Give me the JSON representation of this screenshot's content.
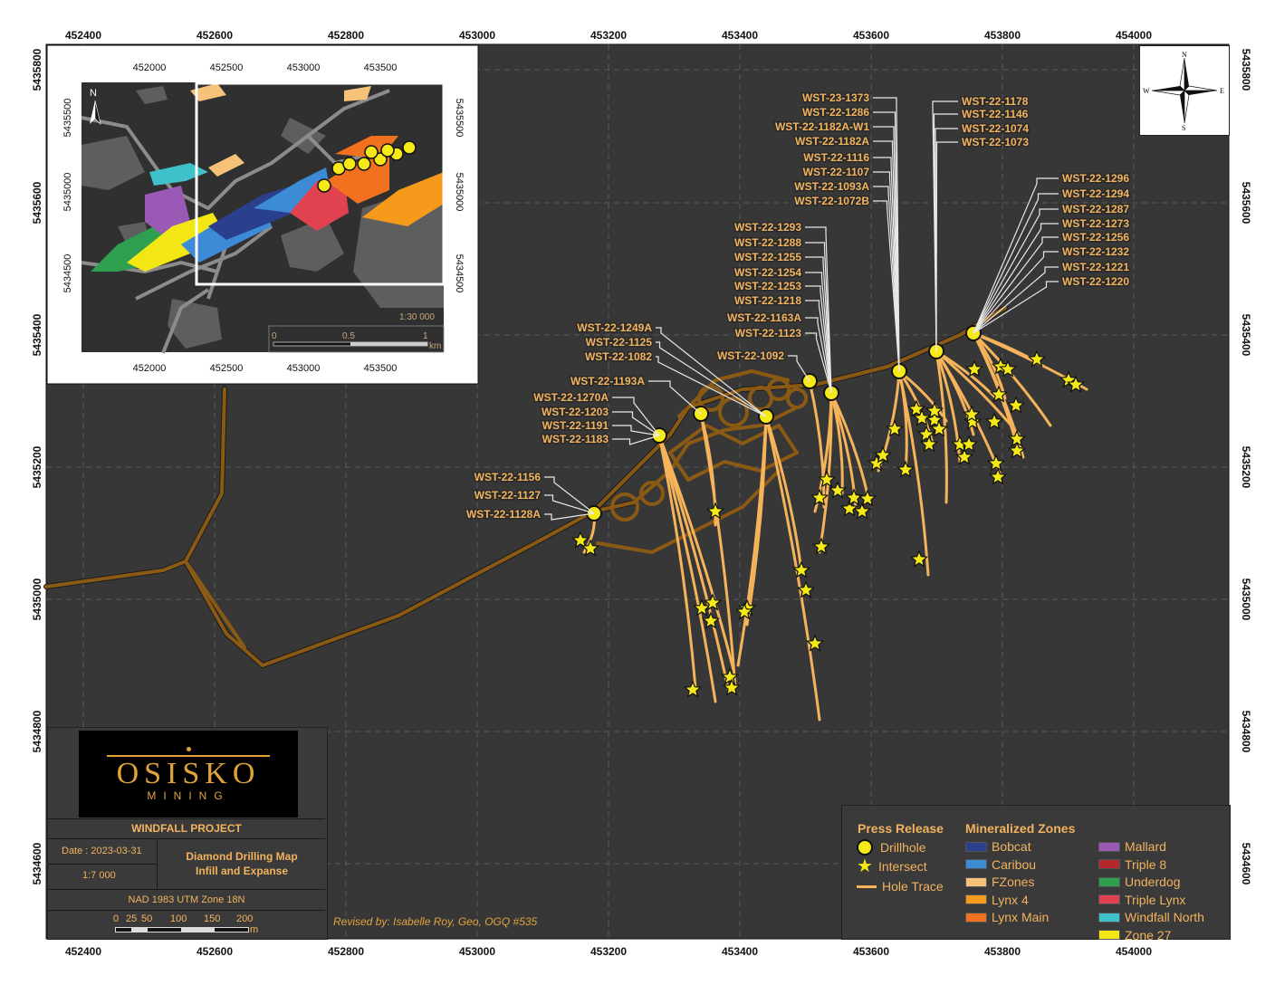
{
  "map": {
    "top_axis": [
      "452400",
      "452600",
      "452800",
      "453000",
      "453200",
      "453400",
      "453600",
      "453800",
      "454000"
    ],
    "bottom_axis": [
      "452400",
      "452600",
      "452800",
      "453000",
      "453200",
      "453400",
      "453600",
      "453800",
      "454000"
    ],
    "left_axis": [
      "5435800",
      "5435600",
      "5435400",
      "5435200",
      "5435000",
      "5434800",
      "5434600"
    ],
    "right_axis": [
      "5435800",
      "5435600",
      "5435400",
      "5435200",
      "5435000",
      "5434800",
      "5434600"
    ]
  },
  "inset": {
    "top_axis": [
      "452000",
      "452500",
      "453000",
      "453500"
    ],
    "bottom_axis": [
      "452000",
      "452500",
      "453000",
      "453500"
    ],
    "left_axis": [
      "5435500",
      "5435000",
      "5434500"
    ],
    "right_axis": [
      "5435500",
      "5435000",
      "5434500"
    ],
    "north": "N",
    "scale_text": "1:30 000",
    "scale_ticks": [
      "0",
      "0.5",
      "1"
    ],
    "scale_unit": "km"
  },
  "compass": {
    "n": "N",
    "s": "S",
    "e": "E",
    "w": "W"
  },
  "labels": {
    "g1": [
      "WST-23-1373",
      "WST-22-1286",
      "WST-22-1182A-W1",
      "WST-22-1182A",
      "WST-22-1116",
      "WST-22-1107",
      "WST-22-1093A",
      "WST-22-1072B"
    ],
    "g2": [
      "WST-22-1178",
      "WST-22-1146",
      "WST-22-1074",
      "WST-22-1073"
    ],
    "g3": [
      "WST-22-1296",
      "WST-22-1294",
      "WST-22-1287",
      "WST-22-1273",
      "WST-22-1256",
      "WST-22-1232",
      "WST-22-1221",
      "WST-22-1220"
    ],
    "g4": [
      "WST-22-1293",
      "WST-22-1288",
      "WST-22-1255",
      "WST-22-1254",
      "WST-22-1253",
      "WST-22-1218",
      "WST-22-1163A",
      "WST-22-1123"
    ],
    "g5": [
      "WST-22-1249A",
      "WST-22-1125",
      "WST-22-1082"
    ],
    "g6": [
      "WST-22-1092"
    ],
    "g7": [
      "WST-22-1193A"
    ],
    "g8": [
      "WST-22-1270A",
      "WST-22-1203",
      "WST-22-1191",
      "WST-22-1183"
    ],
    "g9": [
      "WST-22-1156",
      "WST-22-1127",
      "WST-22-1128A"
    ]
  },
  "titleblock": {
    "logo_name": "OSISKO",
    "logo_sub": "MINING",
    "project": "WINDFALL PROJECT",
    "date": "Date : 2023-03-31",
    "scale": "1:7 000",
    "title1": "Diamond Drilling Map",
    "title2": "Infill and Expanse",
    "datum": "NAD 1983 UTM Zone 18N",
    "scale_ticks": [
      "0",
      "25",
      "50",
      "100",
      "150",
      "200"
    ],
    "scale_unit": "m"
  },
  "revised": "Revised by: Isabelle Roy, Geo, OGQ #535",
  "legend": {
    "press_release": "Press Release",
    "drillhole": "Drillhole",
    "intersect": "Intersect",
    "hole_trace": "Hole Trace",
    "mineralized": "Mineralized Zones",
    "zones": [
      {
        "name": "Bobcat",
        "color": "#2b3f8f"
      },
      {
        "name": "Caribou",
        "color": "#3d8bd4"
      },
      {
        "name": "FZones",
        "color": "#f6c27a"
      },
      {
        "name": "Lynx 4",
        "color": "#f59a1a"
      },
      {
        "name": "Lynx Main",
        "color": "#f2711f"
      },
      {
        "name": "Mallard",
        "color": "#9b59b6"
      },
      {
        "name": "Triple 8",
        "color": "#b3262a"
      },
      {
        "name": "Underdog",
        "color": "#2e9e4f"
      },
      {
        "name": "Triple Lynx",
        "color": "#e0434f"
      },
      {
        "name": "Windfall North",
        "color": "#3ec1c9"
      },
      {
        "name": "Zone 27",
        "color": "#f2e614"
      }
    ]
  }
}
